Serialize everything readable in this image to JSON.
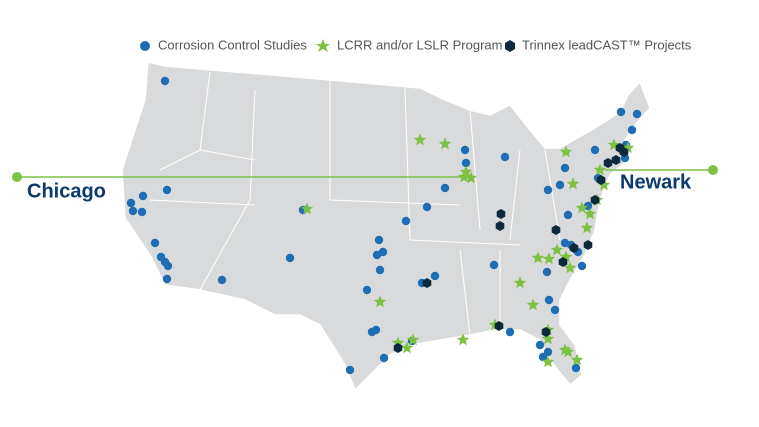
{
  "legend": [
    {
      "label": "Corrosion Control Studies"
    },
    {
      "label": "LCRR and/or LSLR Program"
    },
    {
      "label": "Trinnex leadCAST™ Projects"
    }
  ],
  "callouts": [
    {
      "label": "Chicago"
    },
    {
      "label": "Newark"
    }
  ]
}
